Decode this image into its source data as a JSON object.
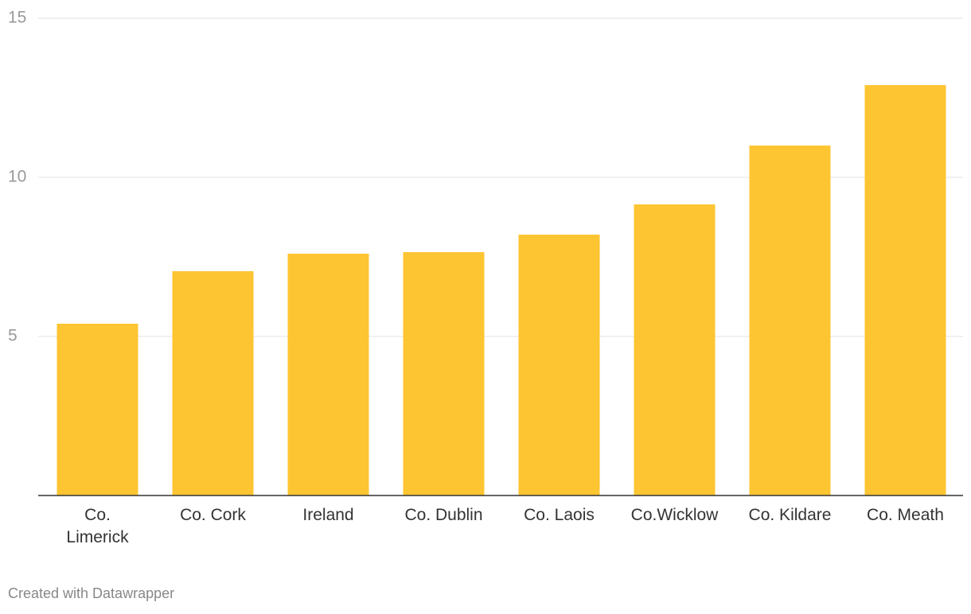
{
  "chart_data": {
    "type": "bar",
    "categories": [
      "Co. Limerick",
      "Co. Cork",
      "Ireland",
      "Co. Dublin",
      "Co. Laois",
      "Co.Wicklow",
      "Co. Kildare",
      "Co. Meath"
    ],
    "values": [
      5.4,
      7.05,
      7.6,
      7.65,
      8.2,
      9.15,
      11.0,
      12.9
    ],
    "color": "#fec532",
    "ylim": [
      0,
      15
    ],
    "yticks": [
      5,
      10,
      15
    ],
    "grid": true
  },
  "credit": "Created with Datawrapper"
}
